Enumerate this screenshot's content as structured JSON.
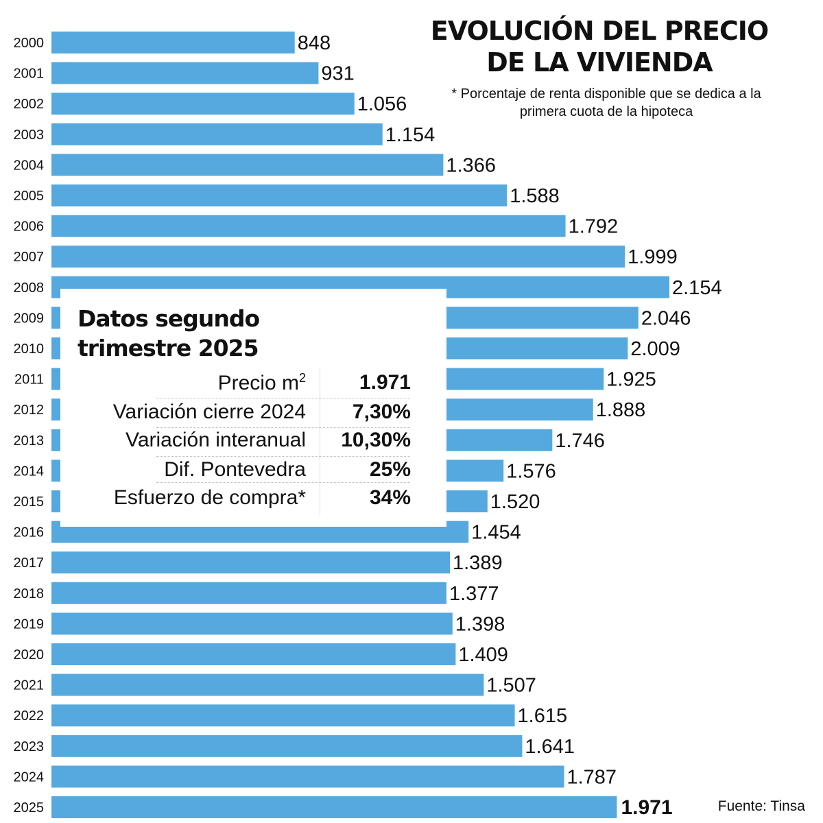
{
  "chart_data": {
    "type": "bar",
    "orientation": "horizontal",
    "title": "EVOLUCIÓN DEL PRECIO DE LA VIVIENDA",
    "subtitle": "* Porcentaje de renta disponible que se dedica a la primera cuota de la hipoteca",
    "categories": [
      "2000",
      "2001",
      "2002",
      "2003",
      "2004",
      "2005",
      "2006",
      "2007",
      "2008",
      "2009",
      "2010",
      "2011",
      "2012",
      "2013",
      "2014",
      "2015",
      "2016",
      "2017",
      "2018",
      "2019",
      "2020",
      "2021",
      "2022",
      "2023",
      "2024",
      "2025"
    ],
    "values": [
      848,
      931,
      1056,
      1154,
      1366,
      1588,
      1792,
      1999,
      2154,
      2046,
      2009,
      1925,
      1888,
      1746,
      1576,
      1520,
      1454,
      1389,
      1377,
      1398,
      1409,
      1507,
      1615,
      1641,
      1787,
      1971
    ],
    "value_labels": [
      "848",
      "931",
      "1.056",
      "1.154",
      "1.366",
      "1.588",
      "1.792",
      "1.999",
      "2.154",
      "2.046",
      "2.009",
      "1.925",
      "1.888",
      "1.746",
      "1.576",
      "1.520",
      "1.454",
      "1.389",
      "1.377",
      "1.398",
      "1.409",
      "1.507",
      "1.615",
      "1.641",
      "1.787",
      "1.971"
    ],
    "highlight": "2025",
    "bar_color": "#55a9de",
    "grid": false,
    "xlim": [
      0,
      2154
    ]
  },
  "source": "Fuente: Tinsa",
  "box": {
    "title_line1": "Datos segundo",
    "title_line2": "trimestre 2025",
    "rows": [
      {
        "label": "Precio m",
        "sup": "2",
        "value": "1.971"
      },
      {
        "label": "Variación cierre 2024",
        "value": "7,30%"
      },
      {
        "label": "Variación interanual",
        "value": "10,30%"
      },
      {
        "label": "Dif. Pontevedra",
        "value": "25%"
      },
      {
        "label": "Esfuerzo de compra*",
        "value": "34%"
      }
    ]
  }
}
